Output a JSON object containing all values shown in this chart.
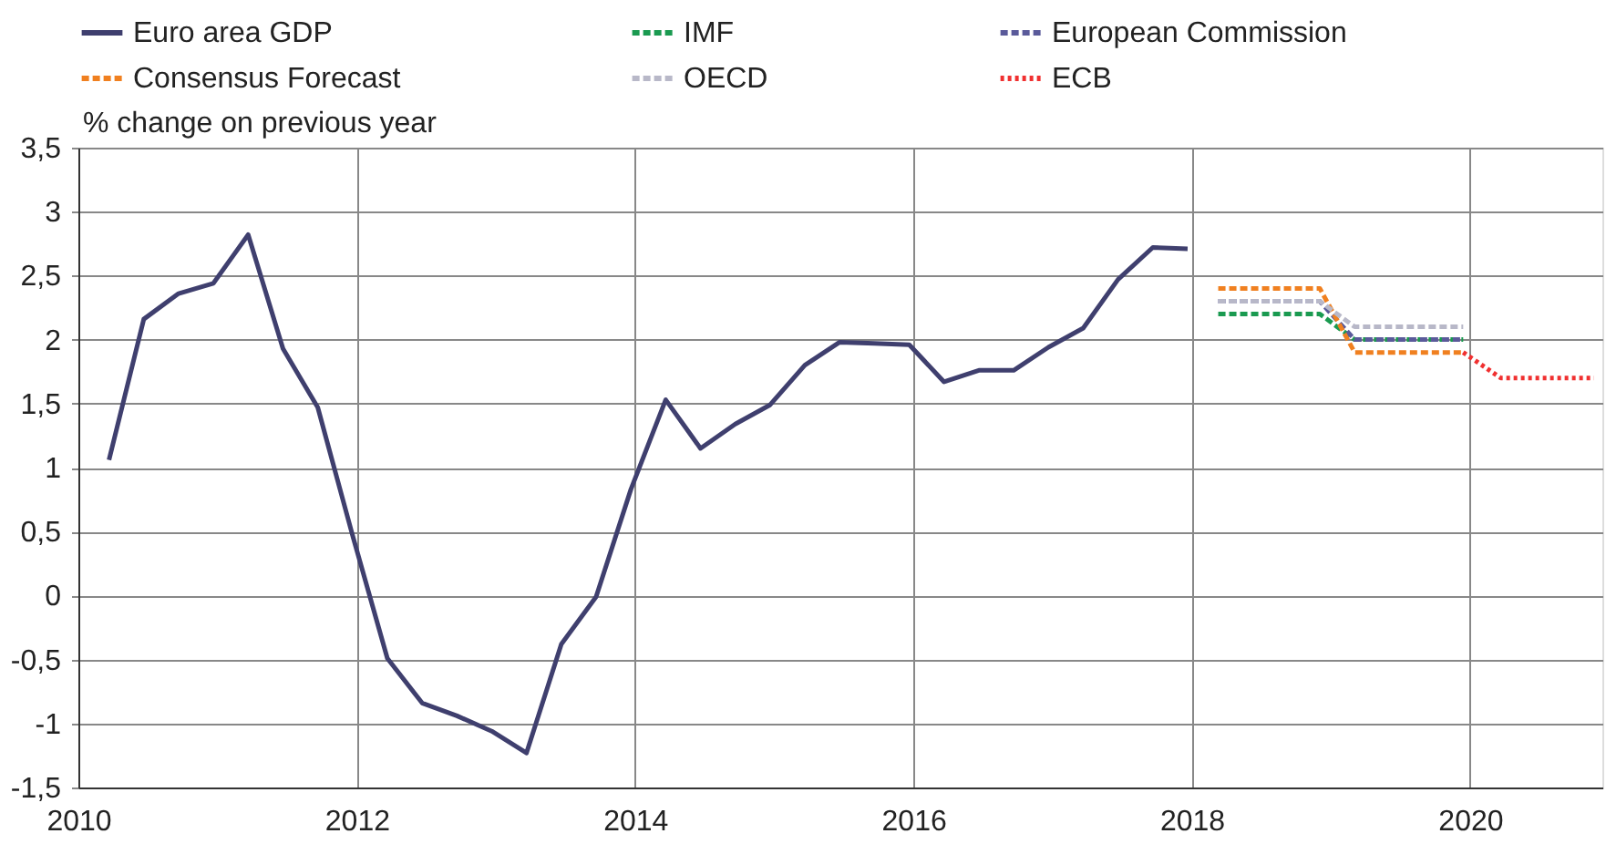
{
  "chart_data": {
    "type": "line",
    "ylabel": "% change on previous year",
    "xlim": [
      2010,
      2020.95
    ],
    "xticks": [
      2010,
      2012,
      2014,
      2016,
      2018,
      2020
    ],
    "ylim": [
      -1.5,
      3.5
    ],
    "yticks": [
      {
        "value": 3.5,
        "label": "3,5"
      },
      3,
      {
        "value": 2.5,
        "label": "2,5"
      },
      2,
      {
        "value": 1.5,
        "label": "1,5"
      },
      1,
      {
        "value": 0.5,
        "label": "0,5"
      },
      0,
      {
        "value": -0.5,
        "label": "-0,5"
      },
      -1,
      {
        "value": -1.5,
        "label": "-1,5"
      }
    ],
    "grid": true,
    "legend": "top",
    "series": [
      {
        "name": "Euro area GDP",
        "color": "#3f3f6e",
        "line_style": "solid",
        "x": [
          2010.22,
          2010.47,
          2010.72,
          2010.97,
          2011.22,
          2011.47,
          2011.72,
          2011.97,
          2012.22,
          2012.47,
          2012.72,
          2012.97,
          2013.22,
          2013.47,
          2013.72,
          2013.97,
          2014.22,
          2014.47,
          2014.72,
          2014.97,
          2015.22,
          2015.47,
          2015.72,
          2015.97,
          2016.22,
          2016.47,
          2016.72,
          2016.97,
          2017.22,
          2017.47,
          2017.72,
          2017.97
        ],
        "values": [
          1.06,
          2.16,
          2.36,
          2.44,
          2.82,
          1.93,
          1.47,
          0.47,
          -0.49,
          -0.84,
          -0.94,
          -1.06,
          -1.23,
          -0.38,
          -0.01,
          0.83,
          1.53,
          1.15,
          1.34,
          1.49,
          1.8,
          1.98,
          1.97,
          1.96,
          1.67,
          1.76,
          1.76,
          1.94,
          2.09,
          2.47,
          2.72,
          2.71
        ]
      },
      {
        "name": "IMF",
        "color": "#1a9a50",
        "line_style": "dashed",
        "x": [
          2018.19,
          2018.92,
          2019.17,
          2019.95
        ],
        "values": [
          2.2,
          2.2,
          2.0,
          2.0
        ]
      },
      {
        "name": "European Commission",
        "color": "#5a5a9a",
        "line_style": "dashed",
        "x": [
          2018.19,
          2018.92,
          2019.17,
          2019.95
        ],
        "values": [
          2.3,
          2.3,
          2.0,
          2.0
        ]
      },
      {
        "name": "Consensus Forecast",
        "color": "#f08020",
        "line_style": "dashed",
        "x": [
          2018.19,
          2018.92,
          2019.17,
          2019.95
        ],
        "values": [
          2.4,
          2.4,
          1.9,
          1.9
        ]
      },
      {
        "name": "OECD",
        "color": "#b8b8c8",
        "line_style": "dashed",
        "x": [
          2018.19,
          2018.92,
          2019.17,
          2019.95
        ],
        "values": [
          2.3,
          2.3,
          2.1,
          2.1
        ]
      },
      {
        "name": "ECB",
        "color": "#f03030",
        "line_style": "dotted",
        "x": [
          2019.95,
          2020.22,
          2020.89
        ],
        "values": [
          1.9,
          1.7,
          1.7
        ]
      }
    ]
  }
}
